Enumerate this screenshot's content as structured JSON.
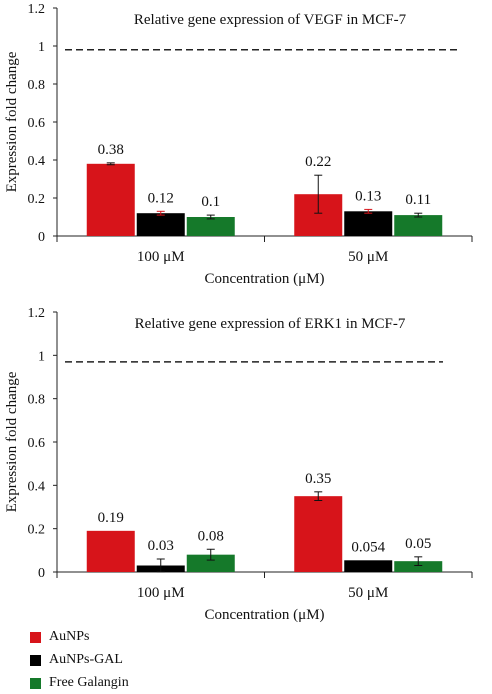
{
  "colors": {
    "AuNPs": "#d7141a",
    "AuNPs-GAL": "#000000",
    "Free Galangin": "#15792a"
  },
  "legend": [
    {
      "name": "AuNPs",
      "color": "#d7141a"
    },
    {
      "name": "AuNPs-GAL",
      "color": "#000000"
    },
    {
      "name": "Free Galangin",
      "color": "#15792a"
    }
  ],
  "chart_data": [
    {
      "type": "bar",
      "title": "Relative gene expression of VEGF in MCF-7",
      "xlabel": "Concentration (μM)",
      "ylabel": "Expression fold change",
      "ylim": [
        0,
        1.2
      ],
      "yticks": [
        "0",
        "0.2",
        "0.4",
        "0.6",
        "0.8",
        "1",
        "1.2"
      ],
      "categories": [
        "100 μM",
        "50 μM"
      ],
      "reference_line": 0.98,
      "grid": false,
      "series": [
        {
          "name": "AuNPs",
          "values": [
            0.38,
            0.22
          ],
          "labels": [
            "0.38",
            "0.22"
          ],
          "errors": [
            0.005,
            0.1
          ]
        },
        {
          "name": "AuNPs-GAL",
          "values": [
            0.12,
            0.13
          ],
          "labels": [
            "0.12",
            "0.13"
          ],
          "errors": [
            0.01,
            0.01
          ]
        },
        {
          "name": "Free Galangin",
          "values": [
            0.1,
            0.11
          ],
          "labels": [
            "0.1",
            "0.11"
          ],
          "errors": [
            0.01,
            0.01
          ]
        }
      ]
    },
    {
      "type": "bar",
      "title": "Relative gene expression of ERK1 in MCF-7",
      "xlabel": "Concentration (μM)",
      "ylabel": "Expression fold change",
      "ylim": [
        0,
        1.2
      ],
      "yticks": [
        "0",
        "0.2",
        "0.4",
        "0.6",
        "0.8",
        "1",
        "1.2"
      ],
      "categories": [
        "100 μM",
        "50 μM"
      ],
      "reference_line": 0.97,
      "grid": false,
      "series": [
        {
          "name": "AuNPs",
          "values": [
            0.19,
            0.35
          ],
          "labels": [
            "0.19",
            "0.35"
          ],
          "errors": [
            0,
            0.02
          ]
        },
        {
          "name": "AuNPs-GAL",
          "values": [
            0.03,
            0.054
          ],
          "labels": [
            "0.03",
            "0.054"
          ],
          "errors": [
            0.03,
            0
          ]
        },
        {
          "name": "Free Galangin",
          "values": [
            0.08,
            0.05
          ],
          "labels": [
            "0.08",
            "0.05"
          ],
          "errors": [
            0.025,
            0.02
          ]
        }
      ]
    }
  ]
}
